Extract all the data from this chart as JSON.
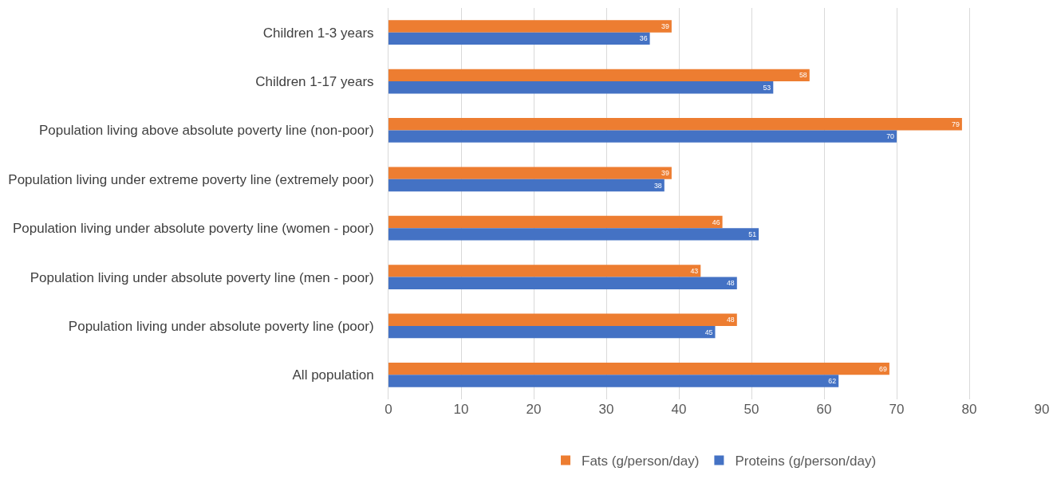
{
  "chart_data": {
    "type": "bar",
    "orientation": "horizontal",
    "categories": [
      "Children 1-3 years",
      "Children 1-17 years",
      "Population living above absolute poverty line (non-poor)",
      "Population living under extreme poverty line (extremely poor)",
      "Population living under absolute poverty line (women - poor)",
      "Population living under absolute poverty line (men - poor)",
      "Population living under absolute poverty line (poor)",
      "All population"
    ],
    "series": [
      {
        "name": "Fats (g/person/day)",
        "color": "#ed7d31",
        "values": [
          39,
          58,
          79,
          39,
          46,
          43,
          48,
          69
        ]
      },
      {
        "name": "Proteins (g/person/day)",
        "color": "#4472c4",
        "values": [
          36,
          53,
          70,
          38,
          51,
          48,
          45,
          62
        ]
      }
    ],
    "xlim": [
      0,
      90
    ],
    "xticks": [
      0,
      10,
      20,
      30,
      40,
      50,
      60,
      70,
      80,
      90
    ],
    "grid": "x",
    "legend": "bottom",
    "data_labels": true
  }
}
